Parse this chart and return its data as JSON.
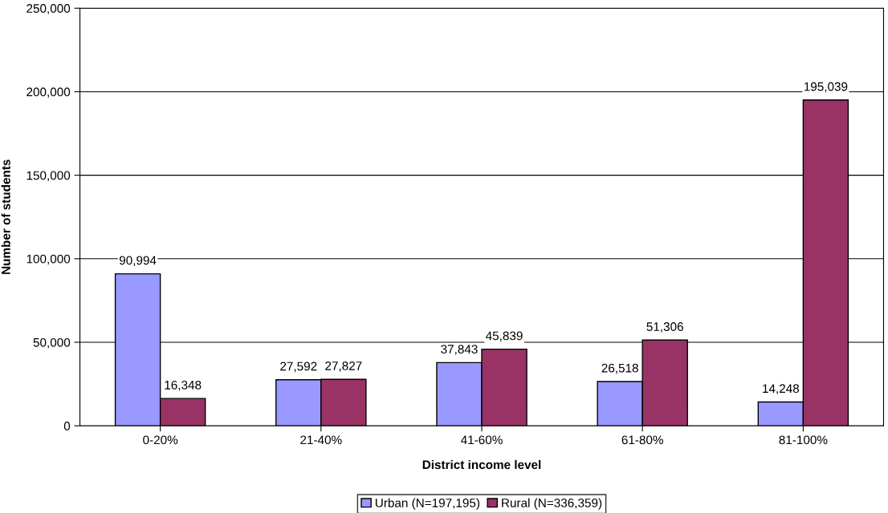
{
  "chart_data": {
    "type": "bar",
    "xlabel": "District income level",
    "ylabel": "Number of students",
    "categories": [
      "0-20%",
      "21-40%",
      "41-60%",
      "61-80%",
      "81-100%"
    ],
    "series": [
      {
        "name": "Urban (N=197,195)",
        "color": "#9999ff",
        "values": [
          90994,
          27592,
          37843,
          26518,
          14248
        ],
        "value_labels": [
          "90,994",
          "27,592",
          "37,843",
          "26,518",
          "14,248"
        ]
      },
      {
        "name": "Rural (N=336,359)",
        "color": "#993366",
        "values": [
          16348,
          27827,
          45839,
          51306,
          195039
        ],
        "value_labels": [
          "16,348",
          "27,827",
          "45,839",
          "51,306",
          "195,039"
        ]
      }
    ],
    "ylim": [
      0,
      250000
    ],
    "yticks": [
      0,
      {
        "value": 50000,
        "label": "50,000"
      },
      {
        "value": 100000,
        "label": "100,000"
      },
      {
        "value": 150000,
        "label": "150,000"
      },
      {
        "value": 200000,
        "label": "200,000"
      },
      {
        "value": 250000,
        "label": "250,000"
      }
    ],
    "grid": "y",
    "legend": "bottom"
  }
}
